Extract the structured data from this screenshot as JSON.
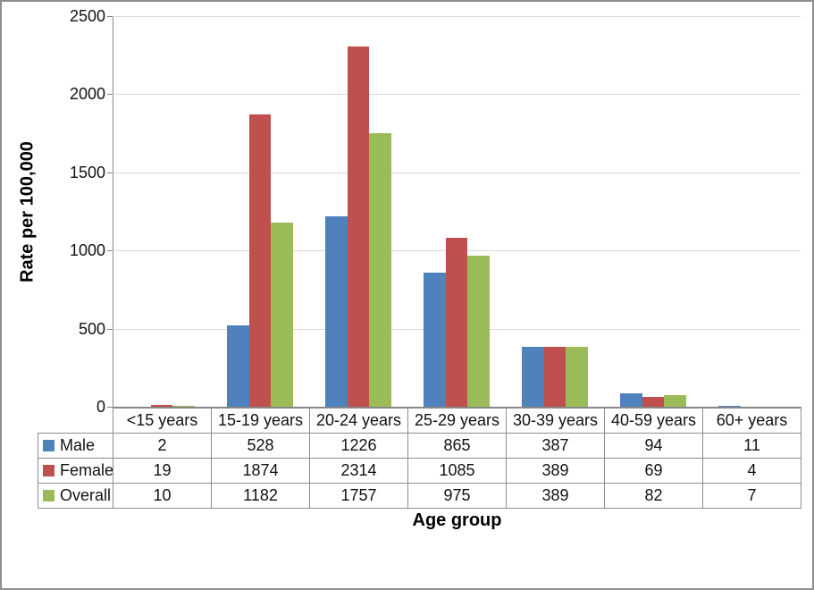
{
  "chart_data": {
    "type": "bar",
    "title": "",
    "xlabel": "Age group",
    "ylabel": "Rate per 100,000",
    "categories": [
      "<15 years",
      "15-19 years",
      "20-24 years",
      "25-29 years",
      "30-39 years",
      "40-59 years",
      "60+ years"
    ],
    "series": [
      {
        "name": "Male",
        "color": "#4F81BD",
        "values": [
          2,
          528,
          1226,
          865,
          387,
          94,
          11
        ]
      },
      {
        "name": "Female",
        "color": "#C0504D",
        "values": [
          19,
          1874,
          2314,
          1085,
          389,
          69,
          4
        ]
      },
      {
        "name": "Overall",
        "color": "#9BBB59",
        "values": [
          10,
          1182,
          1757,
          975,
          389,
          82,
          7
        ]
      }
    ],
    "ylim": [
      0,
      2500
    ],
    "yticks": [
      0,
      500,
      1000,
      1500,
      2000,
      2500
    ],
    "grid": true,
    "gap_width_ratio": 1.5,
    "legend_position": "data-table-left",
    "data_table_shown": true
  },
  "colors": {
    "axis": "#868686",
    "gridline": "#D9D9D9",
    "table_border": "#8C8C8C",
    "frame_border": "#8F8F8F",
    "text": "#111111",
    "background": "#FFFFFF"
  }
}
